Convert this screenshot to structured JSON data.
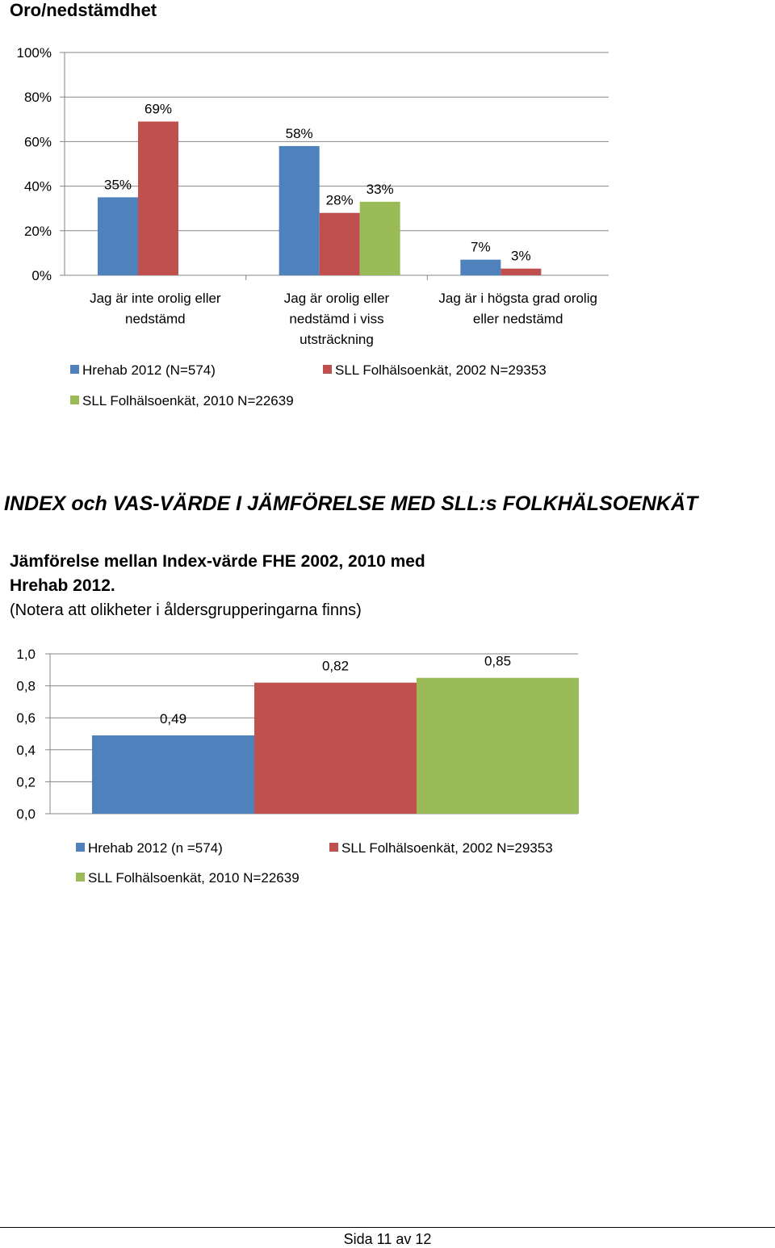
{
  "chart1_title": "Oro/nedstämdhet",
  "section_heading": "INDEX och VAS-VÄRDE I JÄMFÖRELSE MED SLL:s FOLKHÄLSOENKÄT",
  "chart2_title_line1": "Jämförelse mellan Index-värde FHE 2002, 2010 med",
  "chart2_title_line2": "Hrehab 2012.",
  "chart2_subtitle": "(Notera att olikheter i åldersgrupperingarna finns)",
  "footer": "Sida 11 av 12",
  "chart_data": [
    {
      "type": "bar",
      "title": "Oro/nedstämdhet",
      "categories": [
        [
          "Jag är inte orolig eller",
          "nedstämd"
        ],
        [
          "Jag är orolig eller",
          "nedstämd i viss",
          "utsträckning"
        ],
        [
          "Jag är i högsta grad orolig",
          "eller nedstämd"
        ]
      ],
      "series": [
        {
          "name": "Hrehab 2012 (N=574)",
          "color": "#4F81BD",
          "values": [
            35,
            58,
            7
          ],
          "labels": [
            "35%",
            "58%",
            "7%"
          ]
        },
        {
          "name": "SLL  Folhälsoenkät, 2002 N=29353",
          "color": "#C0504D",
          "values": [
            69,
            28,
            3
          ],
          "labels": [
            "69%",
            "28%",
            "3%"
          ]
        },
        {
          "name": "SLL  Folhälsoenkät, 2010 N=22639",
          "color": "#9BBB59",
          "values": [
            null,
            33,
            null
          ],
          "labels": [
            "",
            "33%",
            ""
          ]
        }
      ],
      "ylim": [
        0,
        100
      ],
      "yticks": [
        "0%",
        "20%",
        "40%",
        "60%",
        "80%",
        "100%"
      ],
      "grid": true,
      "legend": "bottom"
    },
    {
      "type": "bar",
      "title": "Jämförelse mellan Index-värde FHE 2002, 2010 med Hrehab 2012.",
      "series": [
        {
          "name": "Hrehab 2012 (n =574)",
          "color": "#4F81BD",
          "value": 0.49,
          "label": "0,49"
        },
        {
          "name": "SLL  Folhälsoenkät, 2002 N=29353",
          "color": "#C0504D",
          "value": 0.82,
          "label": "0,82"
        },
        {
          "name": "SLL  Folhälsoenkät, 2010 N=22639",
          "color": "#9BBB59",
          "value": 0.85,
          "label": "0,85"
        }
      ],
      "ylim": [
        0,
        1.0
      ],
      "yticks": [
        "0,0",
        "0,2",
        "0,4",
        "0,6",
        "0,8",
        "1,0"
      ],
      "grid": true,
      "legend": "bottom"
    }
  ]
}
